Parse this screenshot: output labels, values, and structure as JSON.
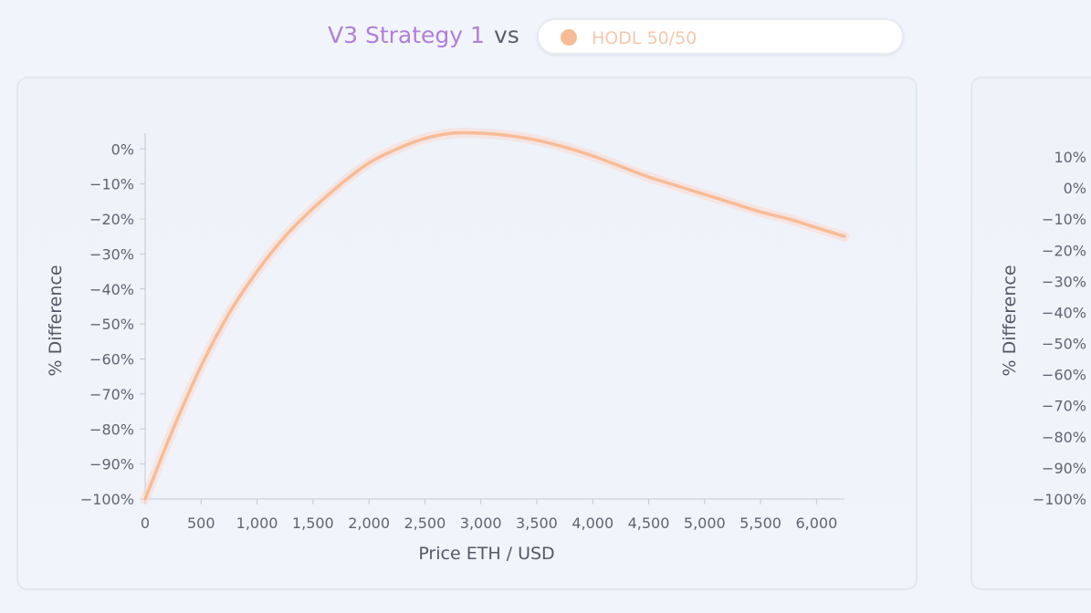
{
  "header": {
    "strategy_label": "V3 Strategy 1",
    "vs_label": "vs",
    "compare_selector": {
      "value": "HODL 50/50",
      "dot_color": "#f7bc96"
    }
  },
  "colors": {
    "strategy_title": "#b07fd9",
    "series_line": "#f7bc96",
    "series_halo": "#f9d8cf",
    "selector_text": "#f3c9ae"
  },
  "chart_data": [
    {
      "type": "line",
      "xlabel": "Price ETH / USD",
      "ylabel": "% Difference",
      "xlim": [
        0,
        6250
      ],
      "ylim": [
        -100,
        4.5
      ],
      "x_ticks": [
        0,
        500,
        1000,
        1500,
        2000,
        2500,
        3000,
        3500,
        4000,
        4500,
        5000,
        5500,
        6000
      ],
      "x_tick_labels": [
        "0",
        "500",
        "1,000",
        "1,500",
        "2,000",
        "2,500",
        "3,000",
        "3,500",
        "4,000",
        "4,500",
        "5,000",
        "5,500",
        "6,000"
      ],
      "y_ticks": [
        0,
        -10,
        -20,
        -30,
        -40,
        -50,
        -60,
        -70,
        -80,
        -90,
        -100
      ],
      "y_tick_labels": [
        "0%",
        "−10%",
        "−20%",
        "−30%",
        "−40%",
        "−50%",
        "−60%",
        "−70%",
        "−80%",
        "−90%",
        "−100%"
      ],
      "legend": "none",
      "series": [
        {
          "x": [
            0,
            250,
            500,
            750,
            1000,
            1250,
            1500,
            1750,
            2000,
            2250,
            2500,
            2750,
            3000,
            3250,
            3500,
            3750,
            4000,
            4250,
            4500,
            4750,
            5000,
            5250,
            5500,
            5750,
            6000,
            6250
          ],
          "values": [
            -100,
            -80,
            -62,
            -47,
            -35,
            -25,
            -17,
            -10,
            -4,
            0,
            3,
            4.5,
            4.5,
            3.8,
            2.5,
            0.5,
            -2,
            -5,
            -8,
            -10.5,
            -13,
            -15.5,
            -18,
            -20,
            -22.5,
            -25
          ]
        }
      ]
    },
    {
      "type": "line",
      "ylabel": "% Difference",
      "ylim": [
        -100,
        10
      ],
      "y_ticks": [
        10,
        0,
        -10,
        -20,
        -30,
        -40,
        -50,
        -60,
        -70,
        -80,
        -90,
        -100
      ],
      "y_tick_labels": [
        "10%",
        "0%",
        "−10%",
        "−20%",
        "−30%",
        "−40%",
        "−50%",
        "−60%",
        "−70%",
        "−80%",
        "−90%",
        "−100%"
      ],
      "legend": "none",
      "series": []
    }
  ]
}
